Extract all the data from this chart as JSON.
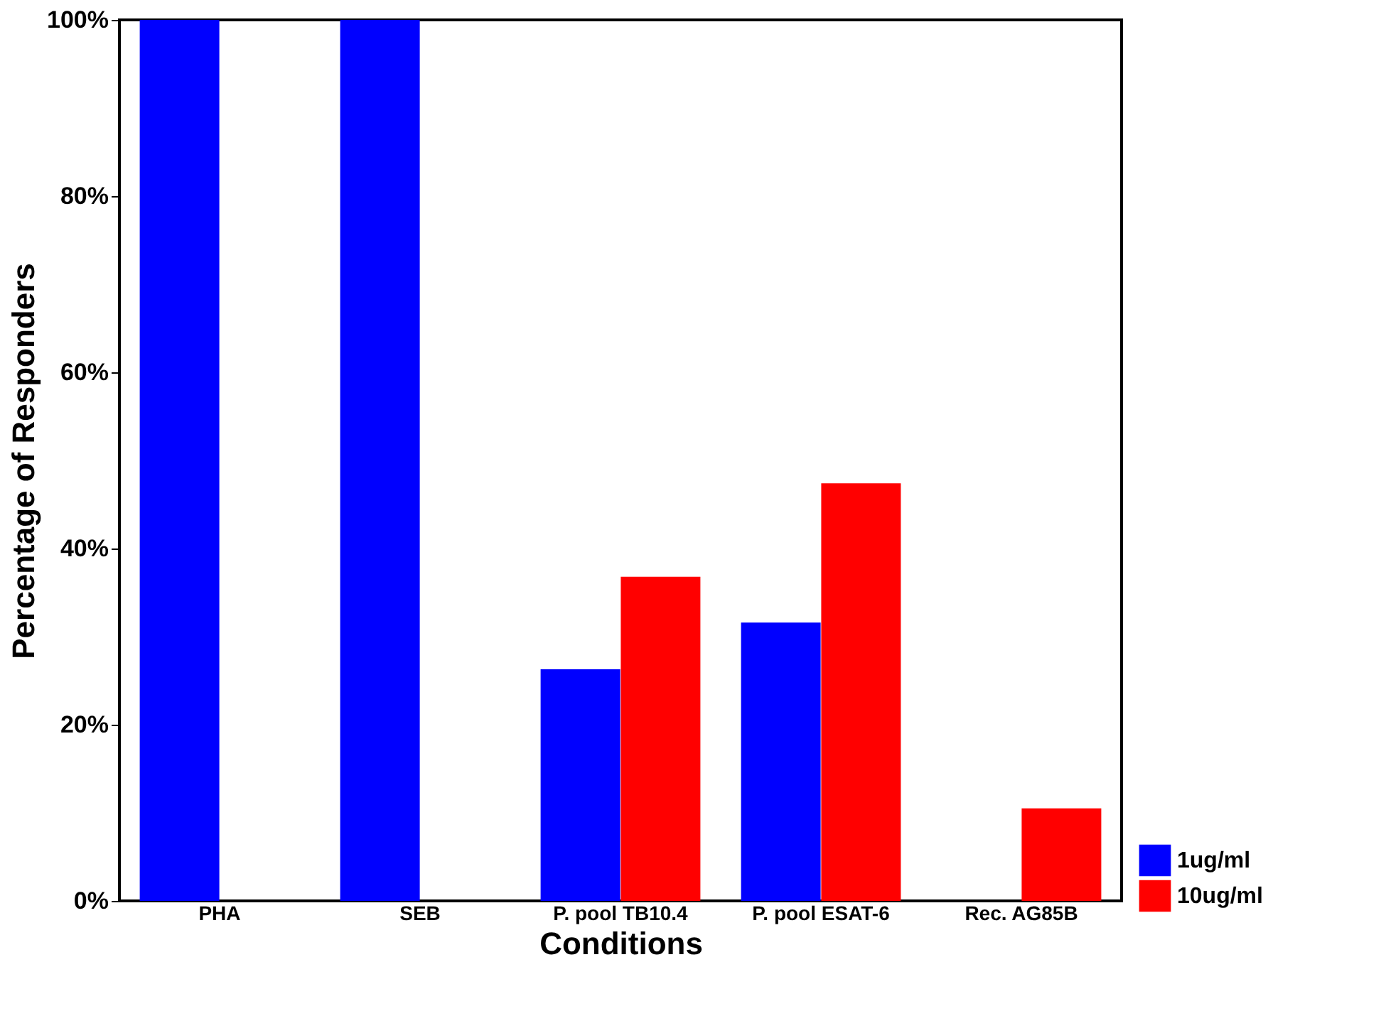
{
  "chart_data": {
    "type": "bar",
    "xlabel": "Conditions",
    "ylabel": "Percentage of Responders",
    "categories": [
      "PHA",
      "SEB",
      "P. pool TB10.4",
      "P. pool ESAT-6",
      "Rec. AG85B"
    ],
    "series": [
      {
        "name": "1ug/ml",
        "color": "#0000ff",
        "values": [
          100,
          100,
          26.3,
          31.6,
          0
        ]
      },
      {
        "name": "10ug/ml",
        "color": "#ff0000",
        "values": [
          0,
          0,
          36.8,
          47.4,
          10.5
        ]
      }
    ],
    "ylim": [
      0,
      100
    ],
    "yticks": [
      {
        "value": 0,
        "label": "0%"
      },
      {
        "value": 20,
        "label": "20%"
      },
      {
        "value": 40,
        "label": "40%"
      },
      {
        "value": 60,
        "label": "60%"
      },
      {
        "value": 80,
        "label": "80%"
      },
      {
        "value": 100,
        "label": "100%"
      }
    ],
    "grid": false,
    "legend": "bottom right"
  }
}
